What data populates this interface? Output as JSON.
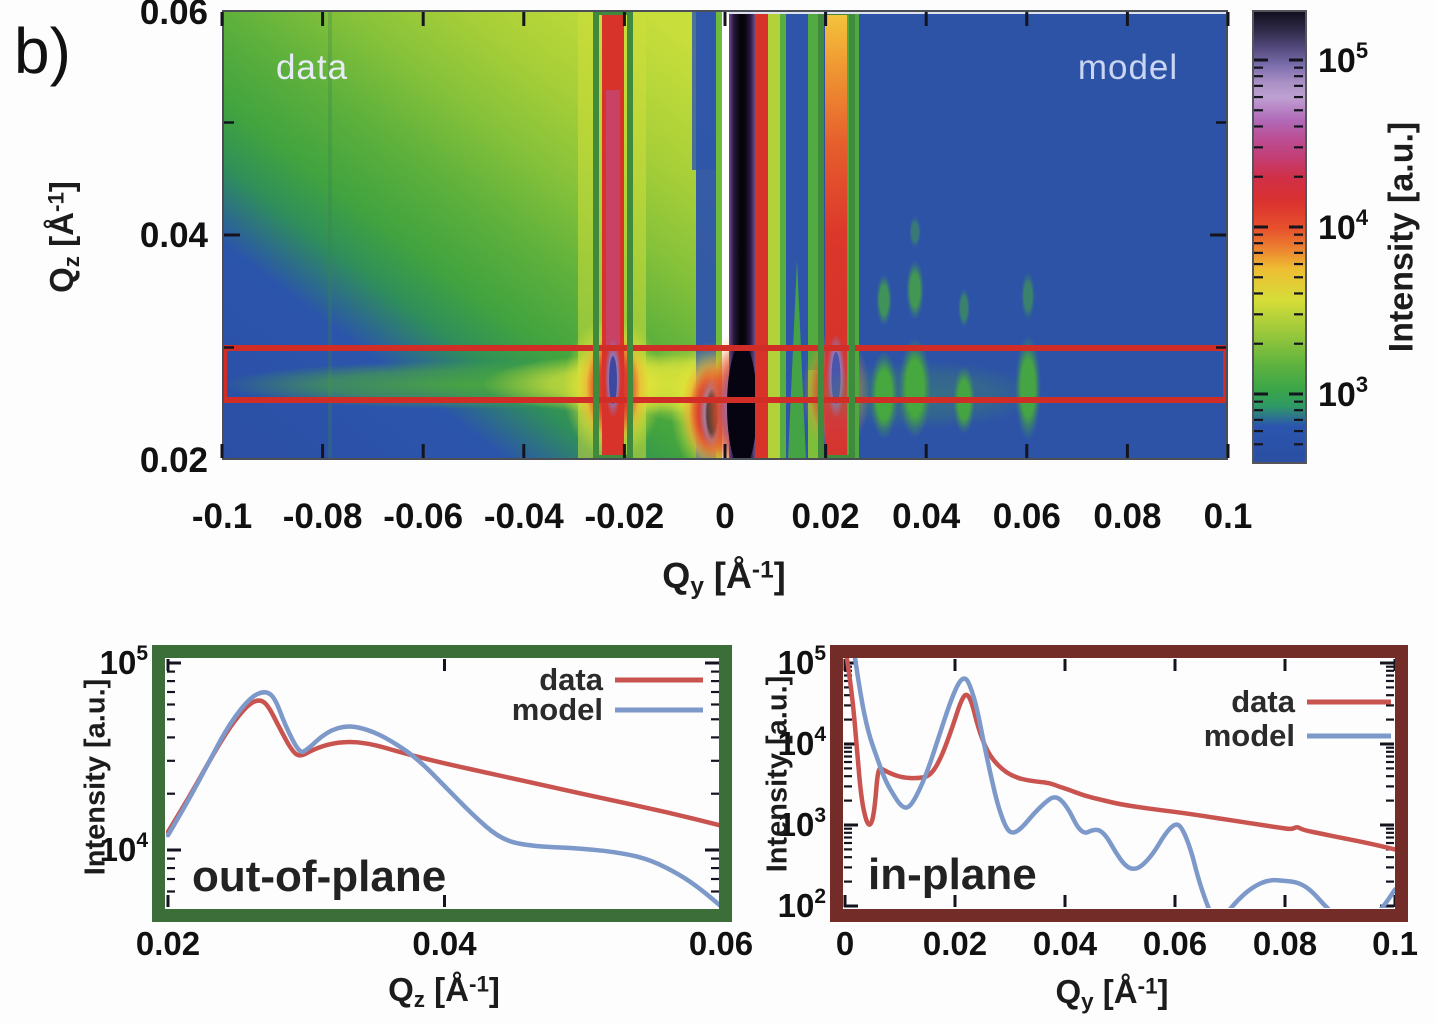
{
  "figure_label": "b)",
  "heatmap": {
    "panel_labels": {
      "left": "data",
      "right": "model"
    },
    "xtick_labels": [
      "-0.1",
      "-0.08",
      "-0.06",
      "-0.04",
      "-0.02",
      "0",
      "0.02",
      "0.04",
      "0.06",
      "0.08",
      "0.1"
    ],
    "ytick_labels": [
      "0.06",
      "0.04",
      "0.02"
    ],
    "colorbar_tick_labels": [
      {
        "base": "10",
        "exp": "5"
      },
      {
        "base": "10",
        "exp": "4"
      },
      {
        "base": "10",
        "exp": "3"
      }
    ]
  },
  "axis_titles": {
    "heatmap_x": {
      "base": "Q",
      "sub": "y",
      "unit_open": " [Å",
      "sup": "-1",
      "unit_close": "]"
    },
    "heatmap_y": {
      "base": "Q",
      "sub": "z",
      "unit_open": " [Å",
      "sup": "-1",
      "unit_close": "]"
    },
    "colorbar": "Intensity [a.u.]",
    "out_of_plane_x": {
      "base": "Q",
      "sub": "z",
      "unit_open": " [Å",
      "sup": "-1",
      "unit_close": "]"
    },
    "out_of_plane_y": "Intensity [a.u.]",
    "in_plane_x": {
      "base": "Q",
      "sub": "y",
      "unit_open": " [Å",
      "sup": "-1",
      "unit_close": "]"
    },
    "in_plane_y": "Intensity [a.u.]"
  },
  "chart_data": [
    {
      "type": "heatmap",
      "panels": [
        "data",
        "model"
      ],
      "xlabel": "Qy [Å-1]",
      "ylabel": "Qz [Å-1]",
      "xlim": [
        -0.1,
        0.1
      ],
      "ylim": [
        0.02,
        0.06
      ],
      "xticks": [
        -0.1,
        -0.08,
        -0.06,
        -0.04,
        -0.02,
        0,
        0.02,
        0.04,
        0.06,
        0.08,
        0.1
      ],
      "yticks": [
        0.06,
        0.04,
        0.02
      ],
      "colorbar": {
        "label": "Intensity [a.u.]",
        "scale": "log",
        "ticks": [
          1000,
          10000,
          100000
        ]
      },
      "roi_boxes": {
        "horizontal_band_qz": [
          0.0253,
          0.0299
        ],
        "vertical_bands_qy": [
          [
            -0.0245,
            -0.0185
          ],
          [
            0.0185,
            0.0248
          ]
        ]
      }
    },
    {
      "type": "line",
      "id": "out_of_plane",
      "annotation": "out-of-plane",
      "xlabel": "Qz [Å-1]",
      "ylabel": "Intensity [a.u.]",
      "x_scale": "linear",
      "y_scale": "log",
      "xlim": [
        0.02,
        0.06
      ],
      "ylim": [
        5000,
        107000
      ],
      "xticks": [
        0.02,
        0.04,
        0.06
      ],
      "xtick_labels": [
        "0.02",
        "0.04",
        "0.06"
      ],
      "ytick_exponents": [
        5,
        4
      ],
      "legend_position": "top-right",
      "series": [
        {
          "name": "data",
          "color": "#c9534f",
          "x": [
            0.02,
            0.0215,
            0.023,
            0.0245,
            0.0258,
            0.0266,
            0.0272,
            0.028,
            0.029,
            0.0296,
            0.0305,
            0.032,
            0.0335,
            0.035,
            0.037,
            0.04,
            0.044,
            0.048,
            0.052,
            0.056,
            0.06
          ],
          "y": [
            12500,
            19000,
            30000,
            46000,
            60000,
            64000,
            60000,
            46000,
            33500,
            31500,
            34500,
            37500,
            38000,
            36500,
            33000,
            29000,
            25000,
            21500,
            18500,
            16000,
            13500
          ]
        },
        {
          "name": "model",
          "color": "#7d99c9",
          "x": [
            0.02,
            0.0215,
            0.023,
            0.0245,
            0.026,
            0.027,
            0.0277,
            0.0285,
            0.0295,
            0.03,
            0.0315,
            0.033,
            0.0345,
            0.036,
            0.038,
            0.04,
            0.042,
            0.044,
            0.046,
            0.05,
            0.053,
            0.055,
            0.057,
            0.0585,
            0.06
          ],
          "y": [
            12000,
            18500,
            30000,
            48000,
            66000,
            71000,
            66000,
            46000,
            33000,
            34000,
            43000,
            46500,
            44000,
            39000,
            31000,
            22000,
            15500,
            11500,
            10500,
            10200,
            9600,
            8800,
            7400,
            6200,
            5000
          ]
        }
      ]
    },
    {
      "type": "line",
      "id": "in_plane",
      "annotation": "in-plane",
      "xlabel": "Qy [Å-1]",
      "ylabel": "Intensity [a.u.]",
      "x_scale": "linear",
      "y_scale": "log",
      "xlim": [
        0,
        0.1
      ],
      "ylim": [
        100,
        106000
      ],
      "xticks": [
        0,
        0.02,
        0.04,
        0.06,
        0.08,
        0.1
      ],
      "xtick_labels": [
        "0",
        "0.02",
        "0.04",
        "0.06",
        "0.08",
        "0.1"
      ],
      "ytick_exponents": [
        5,
        4,
        3,
        2
      ],
      "legend_position": "top-right",
      "series": [
        {
          "name": "data",
          "color": "#c9534f",
          "x": [
            0.0,
            0.0012,
            0.0022,
            0.003,
            0.004,
            0.0048,
            0.0054,
            0.006,
            0.007,
            0.0085,
            0.0105,
            0.013,
            0.0155,
            0.0175,
            0.0195,
            0.021,
            0.022,
            0.023,
            0.0242,
            0.0256,
            0.0272,
            0.0292,
            0.0312,
            0.0332,
            0.0355,
            0.0372,
            0.0388,
            0.0405,
            0.0435,
            0.0465,
            0.05,
            0.055,
            0.06,
            0.065,
            0.07,
            0.075,
            0.079,
            0.0812,
            0.0822,
            0.0832,
            0.087,
            0.091,
            0.095,
            0.1
          ],
          "y": [
            160000,
            50000,
            8000,
            2000,
            1020,
            1000,
            1600,
            5200,
            4800,
            4250,
            3850,
            3750,
            4000,
            6800,
            16000,
            33000,
            43000,
            34000,
            16000,
            8800,
            6000,
            4500,
            3850,
            3550,
            3400,
            3300,
            3000,
            2750,
            2300,
            2050,
            1800,
            1600,
            1450,
            1300,
            1150,
            1020,
            930,
            880,
            960,
            870,
            770,
            680,
            600,
            500
          ]
        },
        {
          "name": "model",
          "color": "#7d99c9",
          "x": [
            0.0015,
            0.0028,
            0.0042,
            0.0058,
            0.0072,
            0.0088,
            0.0102,
            0.0115,
            0.013,
            0.015,
            0.017,
            0.019,
            0.0205,
            0.0215,
            0.0224,
            0.0238,
            0.0252,
            0.0266,
            0.028,
            0.0294,
            0.0306,
            0.0322,
            0.0342,
            0.0362,
            0.0378,
            0.0392,
            0.0408,
            0.0422,
            0.0436,
            0.0448,
            0.0462,
            0.0476,
            0.0492,
            0.051,
            0.0526,
            0.0542,
            0.0562,
            0.0582,
            0.06,
            0.0612,
            0.0628,
            0.0642,
            0.0658,
            0.0672,
            0.0692,
            0.0712,
            0.074,
            0.077,
            0.08,
            0.0825,
            0.0848,
            0.087,
            0.0892,
            0.092,
            0.095,
            0.0975,
            0.1
          ],
          "y": [
            160000,
            40000,
            14000,
            6800,
            3700,
            2350,
            1700,
            1600,
            2250,
            4600,
            12000,
            31000,
            55000,
            66000,
            61000,
            32000,
            10500,
            3800,
            1550,
            880,
            780,
            930,
            1350,
            1850,
            2250,
            2100,
            1500,
            950,
            780,
            860,
            880,
            720,
            460,
            310,
            280,
            320,
            460,
            780,
            1050,
            950,
            520,
            220,
            105,
            62,
            78,
            115,
            170,
            212,
            205,
            195,
            155,
            105,
            75,
            55,
            65,
            90,
            160
          ]
        }
      ]
    }
  ]
}
